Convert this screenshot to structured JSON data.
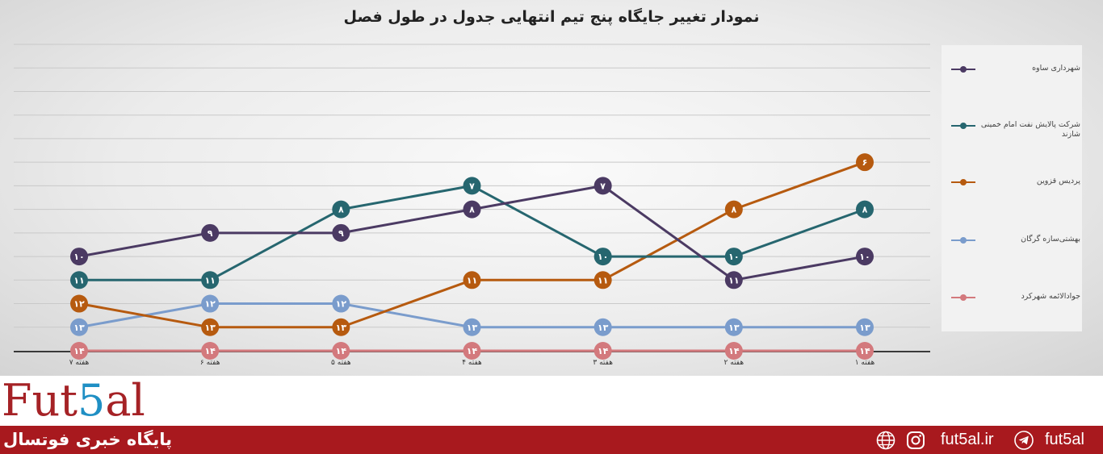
{
  "chart_data": {
    "type": "line",
    "title": "نمودار تغییر جایگاه پنج تیم انتهایی جدول در طول فصل",
    "categories": [
      "هفته ۷",
      "هفته ۶",
      "هفته ۵",
      "هفته ۴",
      "هفته ۳",
      "هفته ۲",
      "هفته ۱"
    ],
    "ylim": [
      14,
      1
    ],
    "grid": true,
    "legend_position": "right",
    "series": [
      {
        "name": "شهرداری ساوه",
        "color": "#4b3a63",
        "values": [
          10,
          9,
          9,
          8,
          7,
          11,
          10
        ],
        "labels": [
          "۱۰",
          "۹",
          "۹",
          "۸",
          "۷",
          "۱۱",
          "۱۰"
        ]
      },
      {
        "name": "شرکت پالایش نفت امام خمینی شازند",
        "color": "#26666f",
        "values": [
          11,
          11,
          8,
          7,
          10,
          10,
          8
        ],
        "labels": [
          "۱۱",
          "۱۱",
          "۸",
          "۷",
          "۱۰",
          "۱۰",
          "۸"
        ]
      },
      {
        "name": "پردیس قزوین",
        "color": "#b65a0f",
        "values": [
          12,
          13,
          13,
          11,
          11,
          8,
          6
        ],
        "labels": [
          "۱۲",
          "۱۳",
          "۱۳",
          "۱۱",
          "۱۱",
          "۸",
          "۶"
        ]
      },
      {
        "name": "بهشتی‌سازه گرگان",
        "color": "#7a9ccc",
        "values": [
          13,
          12,
          12,
          13,
          13,
          13,
          13
        ],
        "labels": [
          "۱۳",
          "۱۲",
          "۱۲",
          "۱۳",
          "۱۳",
          "۱۳",
          "۱۳"
        ]
      },
      {
        "name": "جوادالائمه شهرکرد",
        "color": "#d3797d",
        "values": [
          14,
          14,
          14,
          14,
          14,
          14,
          14
        ],
        "labels": [
          "۱۴",
          "۱۴",
          "۱۴",
          "۱۴",
          "۱۴",
          "۱۴",
          "۱۴"
        ]
      }
    ]
  },
  "branding": {
    "logo_part1": "Fut",
    "logo_part2": "5",
    "logo_part3": "al",
    "tagline": "پایگاه خبری فوتسال",
    "website": "fut5al.ir",
    "telegram": "fut5al"
  },
  "colors": {
    "brand_red": "#a8191e",
    "logo_blue": "#1f8fc4"
  },
  "icons": [
    "globe-icon",
    "instagram-icon",
    "telegram-icon"
  ]
}
